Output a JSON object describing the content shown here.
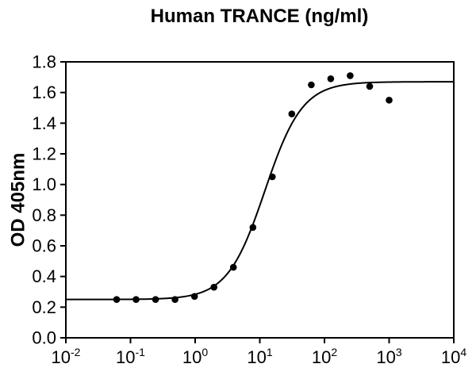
{
  "figure": {
    "title": "Human TRANCE (ng/ml)",
    "y_axis_label": "OD 405nm"
  },
  "chart_data": {
    "type": "scatter",
    "title": "Human TRANCE (ng/ml)",
    "xlabel": "",
    "ylabel": "OD 405nm",
    "x_scale": "log10",
    "xlim": [
      0.01,
      10000
    ],
    "ylim": [
      0.0,
      1.8
    ],
    "grid": false,
    "legend": null,
    "x_tick_exponents": [
      -2,
      -1,
      0,
      1,
      2,
      3,
      4
    ],
    "x_tick_base": "10",
    "y_ticks": [
      0.0,
      0.2,
      0.4,
      0.6,
      0.8,
      1.0,
      1.2,
      1.4,
      1.6,
      1.8
    ],
    "y_tick_decimals": 1,
    "points": [
      {
        "x": 0.061,
        "y": 0.25
      },
      {
        "x": 0.122,
        "y": 0.25
      },
      {
        "x": 0.244,
        "y": 0.25
      },
      {
        "x": 0.488,
        "y": 0.25
      },
      {
        "x": 0.977,
        "y": 0.27
      },
      {
        "x": 1.953,
        "y": 0.33
      },
      {
        "x": 3.906,
        "y": 0.46
      },
      {
        "x": 7.813,
        "y": 0.72
      },
      {
        "x": 15.625,
        "y": 1.05
      },
      {
        "x": 31.25,
        "y": 1.46
      },
      {
        "x": 62.5,
        "y": 1.65
      },
      {
        "x": 125,
        "y": 1.69
      },
      {
        "x": 250,
        "y": 1.71
      },
      {
        "x": 500,
        "y": 1.64
      },
      {
        "x": 1000,
        "y": 1.55
      }
    ],
    "fit_curve": {
      "model": "4PL",
      "bottom": 0.25,
      "top": 1.67,
      "ec50": 12,
      "hill": 1.5
    },
    "colors": {
      "marker": "#000000",
      "curve": "#000000",
      "axis": "#000000",
      "background": "#ffffff"
    },
    "marker": {
      "shape": "circle",
      "radius_px": 4.3
    }
  }
}
